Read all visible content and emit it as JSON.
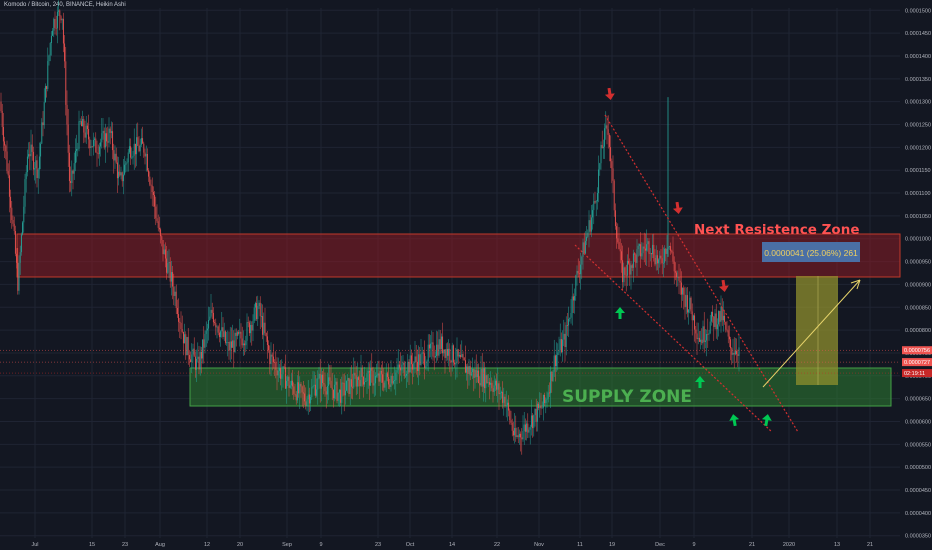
{
  "header": {
    "title": "Komodo / Bitcoin, 240, BINANCE, Heikin Ashi"
  },
  "colors": {
    "background": "#131722",
    "grid": "#1f2433",
    "candle_up": "#26a69a",
    "candle_down": "#ef5350",
    "resistance_fill": "#8a1c24",
    "resistance_text": "#ff5252",
    "supply_fill": "#2e7d32",
    "supply_text": "#4caf50",
    "arrow_down": "#d32f2f",
    "arrow_up": "#00c853",
    "trendline": "#d32f2f",
    "target_box": "#8f8f2e",
    "target_arrow": "#e6d36a",
    "label_box": "#4a6fa5",
    "price_tag": "#ef5350"
  },
  "annotations": {
    "resistance_label": "Next Resistence Zone",
    "supply_label": "SUPPLY ZONE",
    "target_label": "0.0000041 (25.06%) 261"
  },
  "chart_data": {
    "type": "candlestick",
    "symbol": "Komodo / Bitcoin",
    "interval": "240",
    "exchange": "BINANCE",
    "style": "Heikin Ashi",
    "y_axis": {
      "ticks": [
        "0.0001500",
        "0.0001450",
        "0.0001400",
        "0.0001350",
        "0.0001300",
        "0.0001250",
        "0.0001200",
        "0.0001150",
        "0.0001100",
        "0.0001050",
        "0.0001000",
        "0.0000950",
        "0.0000900",
        "0.0000850",
        "0.0000800",
        "0.0000750",
        "0.0000700",
        "0.0000650",
        "0.0000600",
        "0.0000550",
        "0.0000500",
        "0.0000450",
        "0.0000400",
        "0.0000350"
      ],
      "range": [
        3.45e-05,
        0.0001505
      ]
    },
    "x_axis": {
      "ticks": [
        "Jul",
        "15",
        "23",
        "Aug",
        "12",
        "20",
        "Sep",
        "9",
        "23",
        "Oct",
        "14",
        "22",
        "Nov",
        "11",
        "19",
        "Dec",
        "9",
        "21",
        "2020",
        "13",
        "21"
      ]
    },
    "price_tags": [
      {
        "value": "0.0000756",
        "price": 7.56e-05
      },
      {
        "value": "0.0000727",
        "price": 7.3e-05
      },
      {
        "value": "02:19:11",
        "price": 7.06e-05
      }
    ],
    "price_path": [
      {
        "x": 0,
        "price": 0.00013
      },
      {
        "x": 10,
        "price": 0.00011
      },
      {
        "x": 18,
        "price": 9e-05
      },
      {
        "x": 28,
        "price": 0.00012
      },
      {
        "x": 38,
        "price": 0.000115
      },
      {
        "x": 52,
        "price": 0.000147
      },
      {
        "x": 62,
        "price": 0.00015
      },
      {
        "x": 70,
        "price": 0.00011
      },
      {
        "x": 80,
        "price": 0.000125
      },
      {
        "x": 95,
        "price": 0.00012
      },
      {
        "x": 110,
        "price": 0.000123
      },
      {
        "x": 120,
        "price": 0.000112
      },
      {
        "x": 130,
        "price": 0.00012
      },
      {
        "x": 145,
        "price": 0.00012
      },
      {
        "x": 160,
        "price": 0.0001
      },
      {
        "x": 175,
        "price": 8.8e-05
      },
      {
        "x": 185,
        "price": 7.7e-05
      },
      {
        "x": 198,
        "price": 7.2e-05
      },
      {
        "x": 212,
        "price": 8.4e-05
      },
      {
        "x": 228,
        "price": 7.6e-05
      },
      {
        "x": 245,
        "price": 7.9e-05
      },
      {
        "x": 258,
        "price": 8.5e-05
      },
      {
        "x": 270,
        "price": 7.4e-05
      },
      {
        "x": 290,
        "price": 6.8e-05
      },
      {
        "x": 305,
        "price": 6.5e-05
      },
      {
        "x": 320,
        "price": 6.9e-05
      },
      {
        "x": 340,
        "price": 6.6e-05
      },
      {
        "x": 360,
        "price": 7e-05
      },
      {
        "x": 385,
        "price": 6.9e-05
      },
      {
        "x": 405,
        "price": 7.2e-05
      },
      {
        "x": 425,
        "price": 7.4e-05
      },
      {
        "x": 440,
        "price": 7.7e-05
      },
      {
        "x": 455,
        "price": 7.4e-05
      },
      {
        "x": 470,
        "price": 7.1e-05
      },
      {
        "x": 490,
        "price": 6.9e-05
      },
      {
        "x": 505,
        "price": 6.5e-05
      },
      {
        "x": 515,
        "price": 5.6e-05
      },
      {
        "x": 530,
        "price": 6e-05
      },
      {
        "x": 545,
        "price": 6.4e-05
      },
      {
        "x": 555,
        "price": 7.4e-05
      },
      {
        "x": 565,
        "price": 7.8e-05
      },
      {
        "x": 575,
        "price": 9e-05
      },
      {
        "x": 585,
        "price": 9.9e-05
      },
      {
        "x": 595,
        "price": 0.000108
      },
      {
        "x": 602,
        "price": 0.00012
      },
      {
        "x": 608,
        "price": 0.000125
      },
      {
        "x": 615,
        "price": 0.000105
      },
      {
        "x": 622,
        "price": 9.2e-05
      },
      {
        "x": 635,
        "price": 9.6e-05
      },
      {
        "x": 650,
        "price": 9.9e-05
      },
      {
        "x": 660,
        "price": 9.4e-05
      },
      {
        "x": 668,
        "price": 0.0001
      },
      {
        "x": 678,
        "price": 9e-05
      },
      {
        "x": 690,
        "price": 8.5e-05
      },
      {
        "x": 700,
        "price": 7.8e-05
      },
      {
        "x": 712,
        "price": 8.2e-05
      },
      {
        "x": 722,
        "price": 8.3e-05
      },
      {
        "x": 730,
        "price": 7.6e-05
      },
      {
        "x": 740,
        "price": 7.6e-05
      }
    ],
    "zones": [
      {
        "name": "resistance",
        "from": 9.25e-05,
        "to": 0.000102
      },
      {
        "name": "supply",
        "from": 6.5e-05,
        "to": 7.3e-05
      }
    ]
  }
}
